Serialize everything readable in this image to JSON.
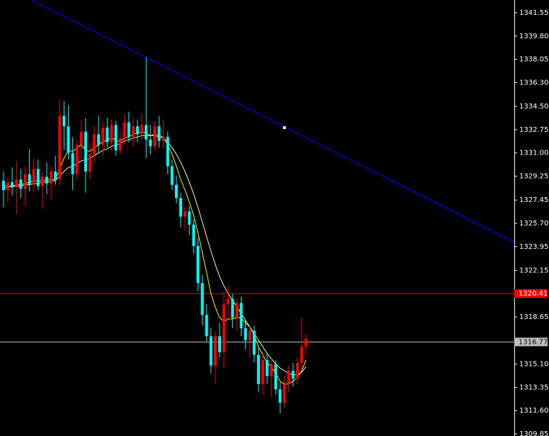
{
  "chart_data": {
    "type": "candlestick",
    "up_color": "#ff0000",
    "down_color": "#00ffff",
    "open": [
      1328.9,
      1328.2,
      1328.8,
      1328.4,
      1329.0,
      1328.3,
      1329.4,
      1328.6,
      1329.8,
      1328.5,
      1329.2,
      1328.7,
      1329.6,
      1329.0,
      1333.8,
      1333.0,
      1331.0,
      1329.4,
      1331.6,
      1332.6,
      1329.6,
      1330.9,
      1332.4,
      1331.6,
      1332.9,
      1331.8,
      1333.1,
      1331.2,
      1332.1,
      1333.3,
      1332.2,
      1333.0,
      1332.4,
      1333.1,
      1332.0,
      1331.5,
      1333.0,
      1331.9,
      1332.2,
      1330.0,
      1328.6,
      1327.6,
      1326.2,
      1326.6,
      1325.6,
      1324.0,
      1321.2,
      1318.8,
      1317.2,
      1315.0,
      1317.2,
      1316.0,
      1319.6,
      1320.0,
      1318.6,
      1319.7,
      1317.8,
      1316.9,
      1317.6,
      1315.8,
      1313.6,
      1315.4,
      1314.2,
      1315.1,
      1313.2,
      1312.2,
      1313.6,
      1314.6,
      1314.0,
      1315.2,
      1316.4
    ],
    "high": [
      1329.6,
      1329.2,
      1329.9,
      1330.4,
      1329.8,
      1330.0,
      1331.3,
      1330.6,
      1330.5,
      1329.6,
      1330.3,
      1330.0,
      1330.8,
      1335.0,
      1334.9,
      1334.6,
      1332.2,
      1332.0,
      1333.4,
      1333.6,
      1331.8,
      1333.0,
      1333.8,
      1333.4,
      1333.6,
      1333.5,
      1333.4,
      1332.7,
      1333.9,
      1334.1,
      1333.6,
      1333.5,
      1334.0,
      1338.2,
      1333.1,
      1333.4,
      1333.8,
      1333.5,
      1332.6,
      1330.5,
      1329.3,
      1328.0,
      1327.0,
      1327.0,
      1326.0,
      1324.6,
      1321.8,
      1319.6,
      1317.8,
      1317.6,
      1318.2,
      1320.6,
      1321.0,
      1320.4,
      1320.0,
      1320.2,
      1318.4,
      1318.0,
      1318.0,
      1316.4,
      1316.0,
      1316.0,
      1315.6,
      1315.4,
      1313.7,
      1314.2,
      1315.0,
      1315.2,
      1315.6,
      1318.6,
      1317.4
    ],
    "low": [
      1326.9,
      1327.3,
      1327.8,
      1326.4,
      1327.6,
      1327.0,
      1328.1,
      1328.0,
      1328.2,
      1326.8,
      1327.9,
      1327.5,
      1328.6,
      1328.5,
      1331.2,
      1330.5,
      1328.2,
      1329.0,
      1330.6,
      1328.0,
      1329.0,
      1330.2,
      1331.0,
      1330.8,
      1331.4,
      1331.2,
      1330.8,
      1330.9,
      1331.6,
      1331.8,
      1331.5,
      1331.8,
      1332.0,
      1330.6,
      1330.9,
      1331.2,
      1331.4,
      1331.3,
      1329.4,
      1328.2,
      1327.2,
      1325.4,
      1325.2,
      1324.8,
      1323.4,
      1320.6,
      1318.0,
      1316.8,
      1314.4,
      1313.6,
      1315.6,
      1314.8,
      1318.4,
      1317.8,
      1317.6,
      1317.2,
      1316.2,
      1315.6,
      1315.2,
      1313.0,
      1312.8,
      1313.6,
      1312.6,
      1312.8,
      1311.4,
      1311.8,
      1313.0,
      1313.4,
      1313.6,
      1314.6,
      1315.8
    ],
    "close": [
      1328.2,
      1328.8,
      1328.4,
      1329.0,
      1328.3,
      1329.4,
      1328.6,
      1329.8,
      1328.5,
      1329.2,
      1328.7,
      1329.6,
      1329.0,
      1333.8,
      1333.0,
      1331.0,
      1329.4,
      1331.6,
      1332.6,
      1329.6,
      1330.9,
      1332.4,
      1331.6,
      1332.9,
      1331.8,
      1333.1,
      1331.2,
      1332.1,
      1333.3,
      1332.2,
      1333.0,
      1332.4,
      1333.1,
      1332.0,
      1331.5,
      1333.0,
      1331.9,
      1332.2,
      1330.0,
      1328.6,
      1327.6,
      1326.2,
      1326.6,
      1325.6,
      1324.0,
      1321.2,
      1318.8,
      1317.2,
      1315.0,
      1317.2,
      1316.0,
      1319.6,
      1320.0,
      1318.6,
      1319.7,
      1317.8,
      1316.9,
      1317.6,
      1315.8,
      1313.6,
      1315.4,
      1314.2,
      1315.1,
      1313.2,
      1312.2,
      1313.6,
      1314.6,
      1314.0,
      1315.2,
      1316.4,
      1317.0
    ],
    "lines": [
      {
        "color": "#ffff00",
        "values": [
          1328.6,
          1328.5,
          1328.5,
          1328.6,
          1328.6,
          1328.7,
          1328.8,
          1328.9,
          1328.9,
          1328.9,
          1329.0,
          1329.0,
          1329.0,
          1329.8,
          1330.6,
          1331.2,
          1331.1,
          1331.4,
          1331.6,
          1331.2,
          1331.1,
          1331.4,
          1331.6,
          1331.9,
          1331.9,
          1332.2,
          1331.9,
          1331.9,
          1332.1,
          1332.2,
          1332.4,
          1332.5,
          1332.6,
          1332.5,
          1332.3,
          1332.4,
          1332.3,
          1332.2,
          1331.6,
          1330.9,
          1330.0,
          1329.0,
          1328.2,
          1327.3,
          1326.3,
          1325.0,
          1323.5,
          1322.0,
          1320.4,
          1319.4,
          1318.6,
          1318.3,
          1318.5,
          1318.5,
          1318.6,
          1318.6,
          1318.2,
          1317.9,
          1317.3,
          1316.4,
          1315.8,
          1315.2,
          1314.9,
          1314.4,
          1313.8,
          1313.6,
          1313.6,
          1313.8,
          1314.1,
          1314.6,
          1315.4
        ]
      },
      {
        "color": "#ffffaa",
        "values": [
          1328.4,
          1328.4,
          1328.5,
          1328.5,
          1328.5,
          1328.6,
          1328.6,
          1328.7,
          1328.7,
          1328.8,
          1328.8,
          1328.9,
          1328.9,
          1329.3,
          1329.6,
          1329.9,
          1330.0,
          1330.2,
          1330.4,
          1330.5,
          1330.6,
          1330.8,
          1331.0,
          1331.2,
          1331.3,
          1331.5,
          1331.6,
          1331.7,
          1331.9,
          1332.0,
          1332.1,
          1332.2,
          1332.3,
          1332.3,
          1332.3,
          1332.3,
          1332.2,
          1332.1,
          1331.8,
          1331.4,
          1330.9,
          1330.3,
          1329.6,
          1328.8,
          1327.9,
          1326.9,
          1325.8,
          1324.7,
          1323.6,
          1322.6,
          1321.7,
          1321.0,
          1320.4,
          1319.9,
          1319.4,
          1318.9,
          1318.4,
          1317.9,
          1317.4,
          1316.9,
          1316.4,
          1315.9,
          1315.5,
          1315.1,
          1314.8,
          1314.6,
          1314.4,
          1314.3,
          1314.3,
          1314.5,
          1314.9
        ]
      }
    ],
    "trend_line": {
      "color": "#0000ff",
      "x": [
        6.5,
        65,
        118.2
      ],
      "values": [
        1342.5,
        1332.9,
        1324.3
      ]
    },
    "price_lines": [
      {
        "value": 1320.41,
        "color": "#ff0000",
        "text_color": "#ffffff"
      },
      {
        "value": 1316.77,
        "color": "#c0c0c0",
        "text_color": "#000000"
      }
    ],
    "xlim": [
      -0.82,
      118.2
    ],
    "ylim": [
      1309.69,
      1342.51
    ],
    "yticks": [
      1341.55,
      {
        "value": 1339.8,
        "label": "1339.80"
      },
      1338.05,
      {
        "value": 1336.3,
        "label": "1336.30"
      },
      {
        "value": 1334.5,
        "label": "1334.50"
      },
      1332.75,
      {
        "value": 1331,
        "label": "1331.00"
      },
      1329.25,
      1327.45,
      {
        "value": 1325.7,
        "label": "1325.70"
      },
      1323.95,
      1322.15,
      1318.65,
      {
        "value": 1315.1,
        "label": "1315.10"
      },
      1313.35,
      {
        "value": 1311.6,
        "label": "1311.60"
      },
      1309.85
    ]
  }
}
